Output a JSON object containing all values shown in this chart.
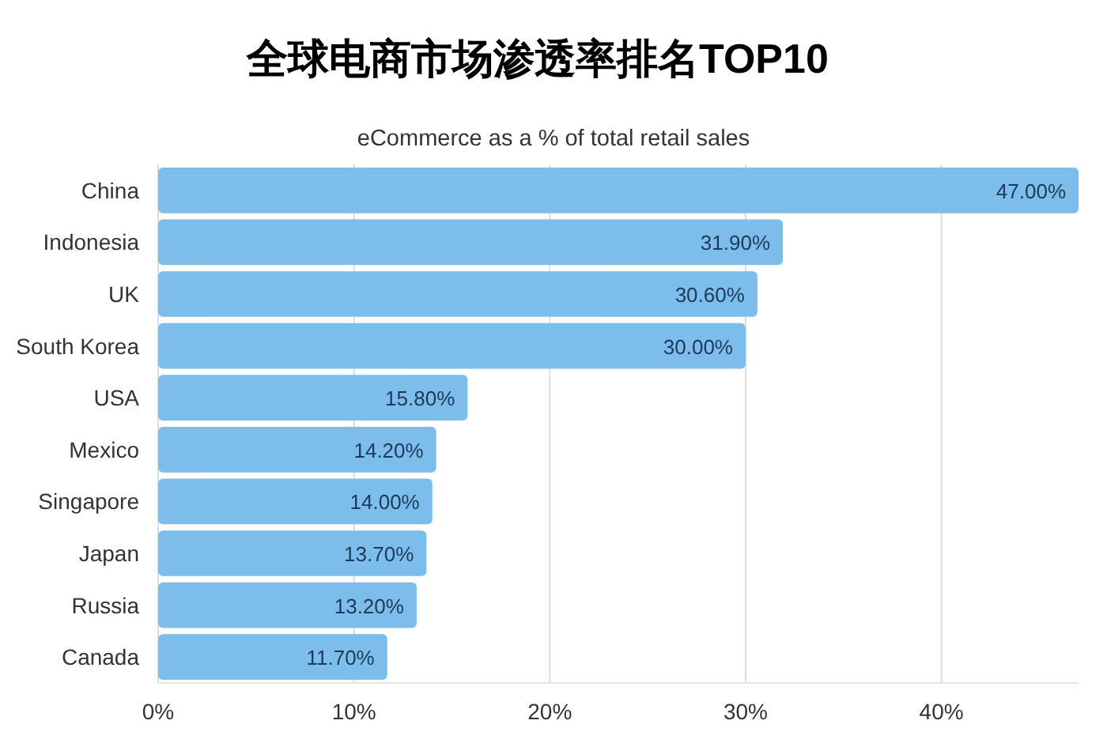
{
  "chart_data": {
    "type": "bar",
    "orientation": "horizontal",
    "title": "全球电商市场渗透率排名TOP10",
    "subtitle": "eCommerce as a % of total retail sales",
    "categories": [
      "China",
      "Indonesia",
      "UK",
      "South Korea",
      "USA",
      "Mexico",
      "Singapore",
      "Japan",
      "Russia",
      "Canada"
    ],
    "values": [
      47,
      31.9,
      30.6,
      30,
      15.8,
      14.2,
      14,
      13.7,
      13.2,
      11.7
    ],
    "value_labels": [
      "47.00%",
      "31.90%",
      "30.60%",
      "30.00%",
      "15.80%",
      "14.20%",
      "14.00%",
      "13.70%",
      "13.20%",
      "11.70%"
    ],
    "color": "#7cbdec",
    "xlim": [
      0,
      47
    ],
    "xticks": [
      {
        "value": 0,
        "label": "0%"
      },
      {
        "value": 10,
        "label": "10%"
      },
      {
        "value": 20,
        "label": "20%"
      },
      {
        "value": 30,
        "label": "30%"
      },
      {
        "value": 40,
        "label": "40%"
      }
    ],
    "grid": "x"
  }
}
